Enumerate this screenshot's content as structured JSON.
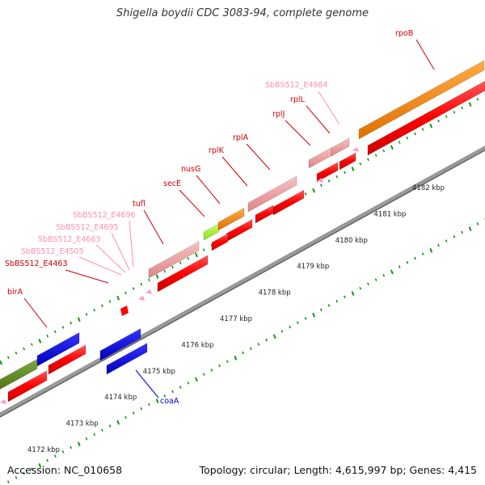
{
  "header": {
    "title": "Shigella boydii CDC 3083-94, complete genome"
  },
  "footer": {
    "accession": "Accession: NC_010658",
    "summary": "Topology: circular; Length: 4,615,997 bp; Genes: 4,415"
  },
  "scale": {
    "ticks": [
      "4172 kbp",
      "4173 kbp",
      "4174 kbp",
      "4175 kbp",
      "4176 kbp",
      "4177 kbp",
      "4178 kbp",
      "4179 kbp",
      "4180 kbp",
      "4181 kbp",
      "4182 kbp"
    ]
  },
  "genes": [
    {
      "label": "rpoB",
      "color": "#cc0000"
    },
    {
      "label": "SbBS512_E4984",
      "color": "#ff8fb0"
    },
    {
      "label": "rplL",
      "color": "#cc0000"
    },
    {
      "label": "rplJ",
      "color": "#cc0000"
    },
    {
      "label": "rplA",
      "color": "#cc0000"
    },
    {
      "label": "rplK",
      "color": "#cc0000"
    },
    {
      "label": "nusG",
      "color": "#cc0000"
    },
    {
      "label": "secE",
      "color": "#cc0000"
    },
    {
      "label": "tufl",
      "color": "#cc0000"
    },
    {
      "label": "SbBS512_E4696",
      "color": "#ff8fb0"
    },
    {
      "label": "SbBS512_E4695",
      "color": "#ff8fb0"
    },
    {
      "label": "SbBS512_E4663",
      "color": "#ff8fb0"
    },
    {
      "label": "SbBS512_E4505",
      "color": "#ff8fb0"
    },
    {
      "label": "SbBS512_E4463",
      "color": "#cc0000"
    },
    {
      "label": "birA",
      "color": "#cc0000"
    },
    {
      "label": "coaA",
      "color": "#0000cc"
    }
  ],
  "colors": {
    "cds": "#ff0000",
    "cds_light": "#f0a0a0",
    "orange": "#ff8c00",
    "blue": "#0000ee",
    "olive": "#5a8a1a",
    "lime": "#aaff33",
    "pink": "#ff99cc",
    "tick": "#119911",
    "backbone": "#888888"
  }
}
